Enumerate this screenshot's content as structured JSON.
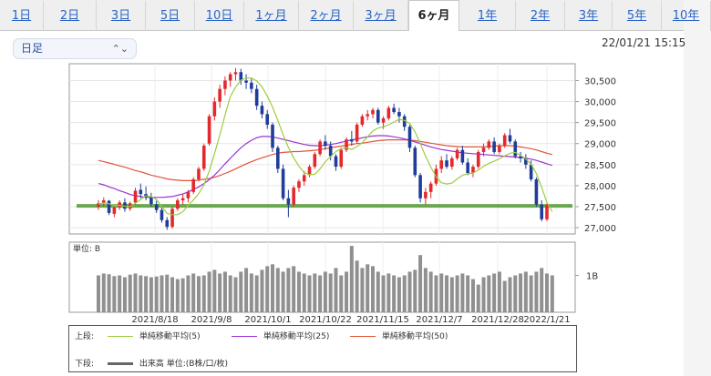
{
  "tabs": [
    {
      "label": "1日",
      "active": false
    },
    {
      "label": "2日",
      "active": false
    },
    {
      "label": "3日",
      "active": false
    },
    {
      "label": "5日",
      "active": false
    },
    {
      "label": "10日",
      "active": false
    },
    {
      "label": "1ヶ月",
      "active": false
    },
    {
      "label": "2ヶ月",
      "active": false
    },
    {
      "label": "3ヶ月",
      "active": false
    },
    {
      "label": "6ヶ月",
      "active": true
    },
    {
      "label": "1年",
      "active": false
    },
    {
      "label": "2年",
      "active": false
    },
    {
      "label": "3年",
      "active": false
    },
    {
      "label": "5年",
      "active": false
    },
    {
      "label": "10年",
      "active": false
    }
  ],
  "controls": {
    "period_select": "日足",
    "datetime": "22/01/21 15:15"
  },
  "colors": {
    "up": "#e3292d",
    "down": "#1f3d99",
    "ma5": "#9ccc3f",
    "ma25": "#9a32d6",
    "ma50": "#e0553a",
    "support_line": "#6aa84f",
    "volume": "#909090",
    "active_tab": "#222222",
    "tab_link": "#2a64c5"
  },
  "chart_data": {
    "type": "candlestick",
    "price_ylim": [
      26850,
      30900
    ],
    "price_ticks": [
      "30,500",
      "30,000",
      "29,500",
      "29,000",
      "28,500",
      "28,000",
      "27,500",
      "27,000"
    ],
    "volume_label": "単位: B",
    "volume_tick": "1B",
    "volume_ylim": [
      0,
      1.9
    ],
    "x_tick_labels": [
      "2021/8/18",
      "2021/9/8",
      "2021/10/1",
      "2021/10/22",
      "2021/11/15",
      "2021/12/7",
      "2021/12/28",
      "2022/1/21"
    ],
    "support_level": 27520,
    "candles": [
      [
        27500,
        27650,
        27420,
        27580
      ],
      [
        27580,
        27720,
        27500,
        27650
      ],
      [
        27640,
        27660,
        27300,
        27350
      ],
      [
        27330,
        27500,
        27250,
        27480
      ],
      [
        27480,
        27650,
        27420,
        27600
      ],
      [
        27600,
        27700,
        27380,
        27450
      ],
      [
        27450,
        27620,
        27400,
        27580
      ],
      [
        27600,
        27950,
        27550,
        27880
      ],
      [
        27900,
        28050,
        27700,
        27800
      ],
      [
        27800,
        27980,
        27650,
        27720
      ],
      [
        27720,
        27830,
        27500,
        27560
      ],
      [
        27560,
        27640,
        27350,
        27420
      ],
      [
        27420,
        27480,
        27120,
        27180
      ],
      [
        27180,
        27250,
        26950,
        27020
      ],
      [
        27020,
        27500,
        26980,
        27450
      ],
      [
        27450,
        27700,
        27400,
        27650
      ],
      [
        27650,
        27800,
        27550,
        27700
      ],
      [
        27700,
        27900,
        27600,
        27850
      ],
      [
        27850,
        28200,
        27800,
        28150
      ],
      [
        28150,
        28450,
        28100,
        28400
      ],
      [
        28400,
        29000,
        28350,
        28950
      ],
      [
        29000,
        29700,
        28950,
        29650
      ],
      [
        29650,
        30100,
        29550,
        30000
      ],
      [
        30000,
        30400,
        29850,
        30300
      ],
      [
        30300,
        30600,
        30150,
        30500
      ],
      [
        30500,
        30700,
        30350,
        30650
      ],
      [
        30650,
        30800,
        30500,
        30700
      ],
      [
        30700,
        30780,
        30400,
        30500
      ],
      [
        30500,
        30650,
        30300,
        30450
      ],
      [
        30450,
        30550,
        30200,
        30300
      ],
      [
        30300,
        30400,
        29800,
        29900
      ],
      [
        29900,
        30000,
        29600,
        29700
      ],
      [
        29700,
        29800,
        29350,
        29450
      ],
      [
        29450,
        29500,
        28800,
        28900
      ],
      [
        28900,
        28950,
        28300,
        28400
      ],
      [
        28400,
        28500,
        27650,
        27700
      ],
      [
        27700,
        27900,
        27250,
        27550
      ],
      [
        27550,
        28000,
        27500,
        27950
      ],
      [
        27950,
        28150,
        27850,
        28100
      ],
      [
        28100,
        28350,
        28000,
        28250
      ],
      [
        28250,
        28500,
        28200,
        28450
      ],
      [
        28450,
        28800,
        28400,
        28750
      ],
      [
        28750,
        29100,
        28700,
        29050
      ],
      [
        29050,
        29200,
        28850,
        28950
      ],
      [
        28950,
        29050,
        28600,
        28700
      ],
      [
        28700,
        28750,
        28350,
        28450
      ],
      [
        28450,
        28900,
        28400,
        28850
      ],
      [
        28850,
        29150,
        28800,
        29100
      ],
      [
        29100,
        29300,
        28950,
        29050
      ],
      [
        29050,
        29500,
        29000,
        29450
      ],
      [
        29450,
        29700,
        29400,
        29650
      ],
      [
        29650,
        29800,
        29550,
        29700
      ],
      [
        29700,
        29850,
        29600,
        29800
      ],
      [
        29800,
        29850,
        29450,
        29500
      ],
      [
        29500,
        29650,
        29350,
        29600
      ],
      [
        29600,
        29900,
        29550,
        29850
      ],
      [
        29850,
        29950,
        29700,
        29750
      ],
      [
        29750,
        29850,
        29500,
        29650
      ],
      [
        29650,
        29700,
        29300,
        29400
      ],
      [
        29400,
        29450,
        28800,
        28900
      ],
      [
        28900,
        28950,
        28200,
        28250
      ],
      [
        28250,
        28300,
        27600,
        27700
      ],
      [
        27700,
        27950,
        27550,
        27850
      ],
      [
        27850,
        28100,
        27700,
        28050
      ],
      [
        28050,
        28500,
        28000,
        28400
      ],
      [
        28400,
        28700,
        28300,
        28600
      ],
      [
        28600,
        28750,
        28400,
        28450
      ],
      [
        28450,
        28700,
        28380,
        28650
      ],
      [
        28650,
        28900,
        28600,
        28850
      ],
      [
        28850,
        28950,
        28500,
        28550
      ],
      [
        28550,
        28650,
        28250,
        28300
      ],
      [
        28300,
        28500,
        28200,
        28450
      ],
      [
        28450,
        28850,
        28400,
        28800
      ],
      [
        28800,
        29000,
        28700,
        28900
      ],
      [
        28900,
        29100,
        28850,
        29050
      ],
      [
        29050,
        29150,
        28750,
        28800
      ],
      [
        28800,
        29000,
        28750,
        28950
      ],
      [
        28950,
        29250,
        28900,
        29200
      ],
      [
        29200,
        29350,
        29000,
        29050
      ],
      [
        29050,
        29100,
        28650,
        28700
      ],
      [
        28700,
        28800,
        28550,
        28650
      ],
      [
        28650,
        28750,
        28400,
        28500
      ],
      [
        28500,
        28600,
        28100,
        28150
      ],
      [
        28150,
        28200,
        27500,
        27550
      ],
      [
        27550,
        27650,
        27150,
        27200
      ],
      [
        27200,
        27600,
        27150,
        27550
      ]
    ],
    "ma5": [
      27560,
      27590,
      27570,
      27530,
      27530,
      27510,
      27500,
      27580,
      27670,
      27760,
      27740,
      27670,
      27500,
      27340,
      27310,
      27310,
      27380,
      27530,
      27660,
      27810,
      28020,
      28350,
      28760,
      29200,
      29680,
      30120,
      30350,
      30510,
      30560,
      30560,
      30490,
      30350,
      30130,
      29870,
      29550,
      29210,
      28910,
      28660,
      28460,
      28310,
      28260,
      28270,
      28400,
      28570,
      28690,
      28810,
      28880,
      28900,
      28860,
      28930,
      29020,
      29160,
      29300,
      29370,
      29400,
      29450,
      29510,
      29580,
      29550,
      29480,
      29280,
      29000,
      28700,
      28440,
      28210,
      28070,
      28040,
      28060,
      28160,
      28250,
      28280,
      28300,
      28370,
      28460,
      28530,
      28580,
      28640,
      28710,
      28770,
      28790,
      28720,
      28640,
      28510,
      28290,
      27960,
      27600,
      27380
    ],
    "ma25": [
      28050,
      28020,
      27970,
      27930,
      27880,
      27840,
      27790,
      27760,
      27740,
      27720,
      27720,
      27720,
      27720,
      27730,
      27740,
      27770,
      27800,
      27850,
      27910,
      27970,
      28050,
      28140,
      28250,
      28380,
      28520,
      28650,
      28780,
      28900,
      29000,
      29080,
      29140,
      29170,
      29170,
      29160,
      29130,
      29100,
      29070,
      29040,
      29010,
      28980,
      28960,
      28950,
      28950,
      28960,
      28980,
      29000,
      29030,
      29060,
      29090,
      29110,
      29140,
      29160,
      29180,
      29190,
      29190,
      29180,
      29160,
      29140,
      29110,
      29080,
      29040,
      29000,
      28960,
      28920,
      28890,
      28860,
      28840,
      28820,
      28800,
      28780,
      28770,
      28760,
      28750,
      28740,
      28730,
      28720,
      28710,
      28700,
      28690,
      28680,
      28670,
      28650,
      28630,
      28600,
      28560,
      28520,
      28480
    ],
    "ma50": [
      28600,
      28570,
      28540,
      28510,
      28470,
      28440,
      28400,
      28360,
      28330,
      28290,
      28250,
      28220,
      28190,
      28160,
      28140,
      28130,
      28120,
      28120,
      28120,
      28130,
      28150,
      28170,
      28200,
      28240,
      28290,
      28340,
      28400,
      28460,
      28520,
      28570,
      28620,
      28660,
      28700,
      28740,
      28770,
      28790,
      28800,
      28810,
      28810,
      28820,
      28830,
      28840,
      28860,
      28880,
      28900,
      28920,
      28940,
      28960,
      28980,
      29000,
      29010,
      29030,
      29050,
      29070,
      29080,
      29090,
      29090,
      29090,
      29090,
      29080,
      29070,
      29050,
      29030,
      29010,
      28990,
      28970,
      28950,
      28940,
      28930,
      28920,
      28920,
      28920,
      28920,
      28920,
      28930,
      28940,
      28950,
      28950,
      28950,
      28940,
      28920,
      28900,
      28880,
      28850,
      28810,
      28770,
      28740
    ],
    "volume": [
      1.0,
      1.05,
      1.03,
      0.98,
      1.0,
      0.95,
      1.02,
      1.05,
      1.0,
      0.98,
      0.95,
      0.97,
      1.0,
      1.02,
      0.95,
      0.9,
      0.92,
      1.0,
      1.05,
      0.98,
      1.0,
      1.1,
      1.15,
      1.05,
      1.1,
      1.0,
      0.95,
      1.1,
      1.2,
      1.05,
      1.0,
      1.15,
      1.25,
      1.3,
      1.2,
      1.1,
      1.2,
      1.25,
      1.1,
      1.05,
      1.0,
      1.05,
      1.0,
      1.1,
      1.05,
      1.2,
      1.0,
      1.1,
      1.8,
      1.4,
      1.2,
      1.3,
      1.25,
      1.1,
      1.0,
      1.05,
      1.0,
      0.95,
      1.0,
      1.1,
      1.15,
      1.55,
      1.2,
      1.1,
      1.0,
      1.05,
      1.0,
      0.95,
      1.0,
      1.05,
      1.0,
      0.9,
      0.75,
      0.95,
      1.0,
      1.05,
      1.1,
      0.85,
      0.95,
      1.0,
      1.05,
      1.1,
      1.0,
      1.1,
      1.2,
      1.05,
      1.0
    ]
  },
  "legend": {
    "upper_label": "上段:",
    "lower_label": "下段:",
    "ma5_label": "単純移動平均(5)",
    "ma25_label": "単純移動平均(25)",
    "ma50_label": "単純移動平均(50)",
    "volume_label": "出来高 単位:(B株/口/枚)"
  }
}
